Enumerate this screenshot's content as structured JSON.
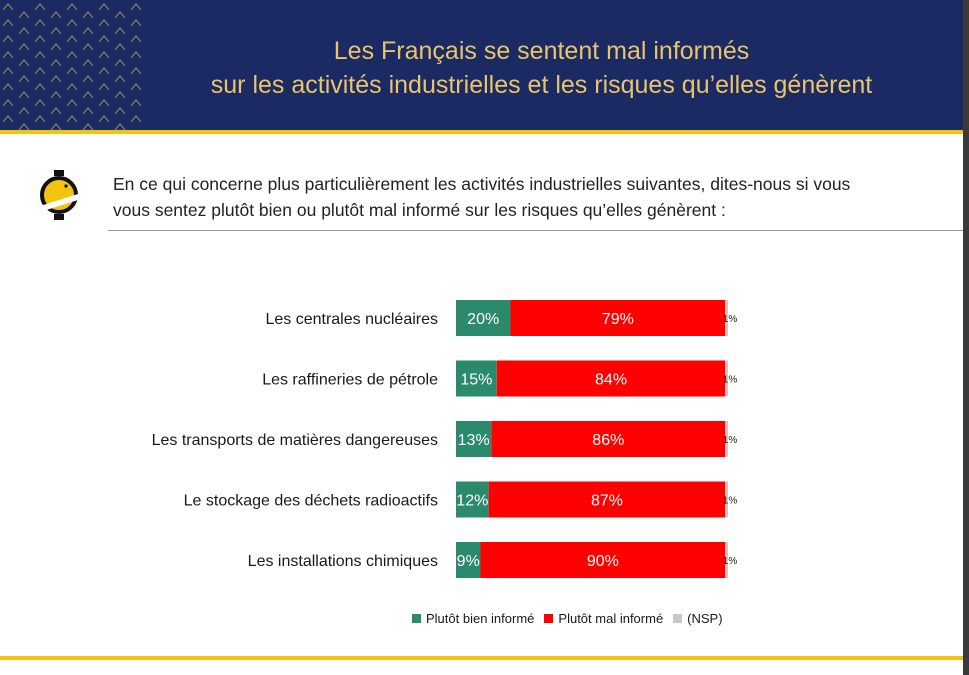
{
  "header": {
    "title_line1": "Les Français se sentent mal informés",
    "title_line2": "sur les activités industrielles et les risques qu’elles génèrent"
  },
  "question": {
    "line1": "En ce qui concerne plus particulièrement les activités industrielles suivantes, dites-nous si vous",
    "line2": "vous sentez plutôt bien ou plutôt mal informé sur les risques qu’elles génèrent :"
  },
  "colors": {
    "header_bg": "#1b2a63",
    "title": "#e9c46a",
    "accent_yellow": "#f2c40f",
    "bien": "#2b8a6c",
    "mal": "#ff0000",
    "nsp": "#c8c8c8"
  },
  "chart_data": {
    "type": "bar",
    "orientation": "horizontal-stacked-100",
    "categories": [
      "Les centrales nucléaires",
      "Les raffineries de pétrole",
      "Les transports de matières dangereuses",
      "Le stockage des déchets radioactifs",
      "Les installations chimiques"
    ],
    "series": [
      {
        "name": "Plutôt bien informé",
        "values": [
          20,
          15,
          13,
          12,
          9
        ],
        "color": "#2b8a6c"
      },
      {
        "name": "Plutôt mal informé",
        "values": [
          79,
          84,
          86,
          87,
          90
        ],
        "color": "#ff0000"
      },
      {
        "name": "(NSP)",
        "values": [
          1,
          1,
          1,
          1,
          1
        ],
        "color": "#c8c8c8"
      }
    ],
    "value_suffix": "%",
    "legend_position": "bottom"
  }
}
